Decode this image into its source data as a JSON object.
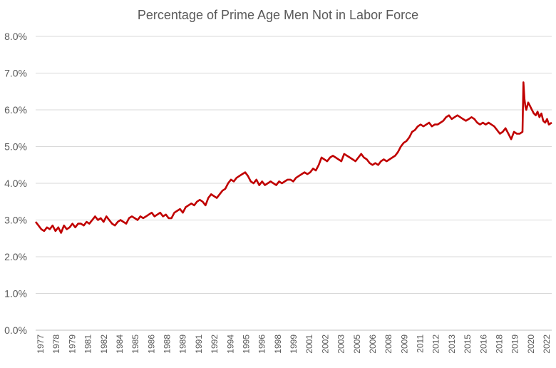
{
  "chart_data": {
    "type": "line",
    "title": "Percentage of Prime Age Men Not in Labor Force",
    "xlabel": "",
    "ylabel": "",
    "ylim": [
      0,
      8
    ],
    "y_ticks": [
      "0.0%",
      "1.0%",
      "2.0%",
      "3.0%",
      "4.0%",
      "5.0%",
      "6.0%",
      "7.0%",
      "8.0%"
    ],
    "y_tick_values": [
      0,
      1,
      2,
      3,
      4,
      5,
      6,
      7,
      8
    ],
    "x_ticks": [
      "1977",
      "1978",
      "1979",
      "1981",
      "1982",
      "1984",
      "1985",
      "1986",
      "1988",
      "1989",
      "1991",
      "1992",
      "1994",
      "1995",
      "1996",
      "1998",
      "1999",
      "2001",
      "2002",
      "2003",
      "2005",
      "2006",
      "2008",
      "2009",
      "2011",
      "2012",
      "2013",
      "2015",
      "2016",
      "2018",
      "2019",
      "2020",
      "2022"
    ],
    "x_range": [
      1977.0,
      2022.58
    ],
    "grid": true,
    "legend": "none",
    "line_color": "#C00000",
    "series": [
      {
        "x": [
          1977.0,
          1977.25,
          1977.5,
          1977.75,
          1978.0,
          1978.25,
          1978.5,
          1978.75,
          1979.0,
          1979.25,
          1979.5,
          1979.75,
          1980.0,
          1980.25,
          1980.5,
          1980.75,
          1981.0,
          1981.25,
          1981.5,
          1981.75,
          1982.0,
          1982.25,
          1982.5,
          1982.75,
          1983.0,
          1983.25,
          1983.5,
          1983.75,
          1984.0,
          1984.25,
          1984.5,
          1984.75,
          1985.0,
          1985.25,
          1985.5,
          1985.75,
          1986.0,
          1986.25,
          1986.5,
          1986.75,
          1987.0,
          1987.25,
          1987.5,
          1987.75,
          1988.0,
          1988.25,
          1988.5,
          1988.75,
          1989.0,
          1989.25,
          1989.5,
          1989.75,
          1990.0,
          1990.25,
          1990.5,
          1990.75,
          1991.0,
          1991.25,
          1991.5,
          1991.75,
          1992.0,
          1992.25,
          1992.5,
          1992.75,
          1993.0,
          1993.25,
          1993.5,
          1993.75,
          1994.0,
          1994.25,
          1994.5,
          1994.75,
          1995.0,
          1995.25,
          1995.5,
          1995.75,
          1996.0,
          1996.25,
          1996.5,
          1996.75,
          1997.0,
          1997.25,
          1997.5,
          1997.75,
          1998.0,
          1998.25,
          1998.5,
          1998.75,
          1999.0,
          1999.25,
          1999.5,
          1999.75,
          2000.0,
          2000.25,
          2000.5,
          2000.75,
          2001.0,
          2001.25,
          2001.5,
          2001.75,
          2002.0,
          2002.25,
          2002.5,
          2002.75,
          2003.0,
          2003.25,
          2003.5,
          2003.75,
          2004.0,
          2004.25,
          2004.5,
          2004.75,
          2005.0,
          2005.25,
          2005.5,
          2005.75,
          2006.0,
          2006.25,
          2006.5,
          2006.75,
          2007.0,
          2007.25,
          2007.5,
          2007.75,
          2008.0,
          2008.25,
          2008.5,
          2008.75,
          2009.0,
          2009.25,
          2009.5,
          2009.75,
          2010.0,
          2010.25,
          2010.5,
          2010.75,
          2011.0,
          2011.25,
          2011.5,
          2011.75,
          2012.0,
          2012.25,
          2012.5,
          2012.75,
          2013.0,
          2013.25,
          2013.5,
          2013.75,
          2014.0,
          2014.25,
          2014.5,
          2014.75,
          2015.0,
          2015.25,
          2015.5,
          2015.75,
          2016.0,
          2016.25,
          2016.5,
          2016.75,
          2017.0,
          2017.25,
          2017.5,
          2017.75,
          2018.0,
          2018.25,
          2018.5,
          2018.75,
          2019.0,
          2019.25,
          2019.5,
          2019.75,
          2020.0,
          2020.08,
          2020.17,
          2020.25,
          2020.33,
          2020.5,
          2020.67,
          2020.83,
          2021.0,
          2021.17,
          2021.33,
          2021.5,
          2021.67,
          2021.83,
          2022.0,
          2022.17,
          2022.33,
          2022.58
        ],
        "y": [
          2.95,
          2.85,
          2.75,
          2.7,
          2.8,
          2.75,
          2.85,
          2.7,
          2.8,
          2.65,
          2.85,
          2.75,
          2.8,
          2.9,
          2.8,
          2.9,
          2.9,
          2.85,
          2.95,
          2.9,
          3.0,
          3.1,
          3.0,
          3.05,
          2.95,
          3.1,
          3.0,
          2.9,
          2.85,
          2.95,
          3.0,
          2.95,
          2.9,
          3.05,
          3.1,
          3.05,
          3.0,
          3.1,
          3.05,
          3.1,
          3.15,
          3.2,
          3.1,
          3.15,
          3.2,
          3.1,
          3.15,
          3.05,
          3.05,
          3.2,
          3.25,
          3.3,
          3.2,
          3.35,
          3.4,
          3.45,
          3.4,
          3.5,
          3.55,
          3.5,
          3.4,
          3.6,
          3.7,
          3.65,
          3.6,
          3.7,
          3.8,
          3.85,
          4.0,
          4.1,
          4.05,
          4.15,
          4.2,
          4.25,
          4.3,
          4.2,
          4.05,
          4.0,
          4.1,
          3.95,
          4.05,
          3.95,
          4.0,
          4.05,
          4.0,
          3.95,
          4.05,
          4.0,
          4.05,
          4.1,
          4.1,
          4.05,
          4.15,
          4.2,
          4.25,
          4.3,
          4.25,
          4.3,
          4.4,
          4.35,
          4.5,
          4.7,
          4.65,
          4.6,
          4.7,
          4.75,
          4.7,
          4.65,
          4.6,
          4.8,
          4.75,
          4.7,
          4.65,
          4.6,
          4.7,
          4.8,
          4.7,
          4.65,
          4.55,
          4.5,
          4.55,
          4.5,
          4.6,
          4.65,
          4.6,
          4.65,
          4.7,
          4.75,
          4.85,
          5.0,
          5.1,
          5.15,
          5.25,
          5.4,
          5.45,
          5.55,
          5.6,
          5.55,
          5.6,
          5.65,
          5.55,
          5.6,
          5.6,
          5.65,
          5.7,
          5.8,
          5.85,
          5.75,
          5.8,
          5.85,
          5.8,
          5.75,
          5.7,
          5.75,
          5.8,
          5.75,
          5.65,
          5.6,
          5.65,
          5.6,
          5.65,
          5.6,
          5.55,
          5.45,
          5.35,
          5.4,
          5.5,
          5.35,
          5.2,
          5.4,
          5.35,
          5.35,
          5.4,
          6.75,
          6.3,
          6.1,
          6.0,
          6.2,
          6.1,
          6.0,
          5.9,
          5.85,
          5.95,
          5.8,
          5.9,
          5.7,
          5.65,
          5.75,
          5.6,
          5.65
        ]
      }
    ]
  }
}
